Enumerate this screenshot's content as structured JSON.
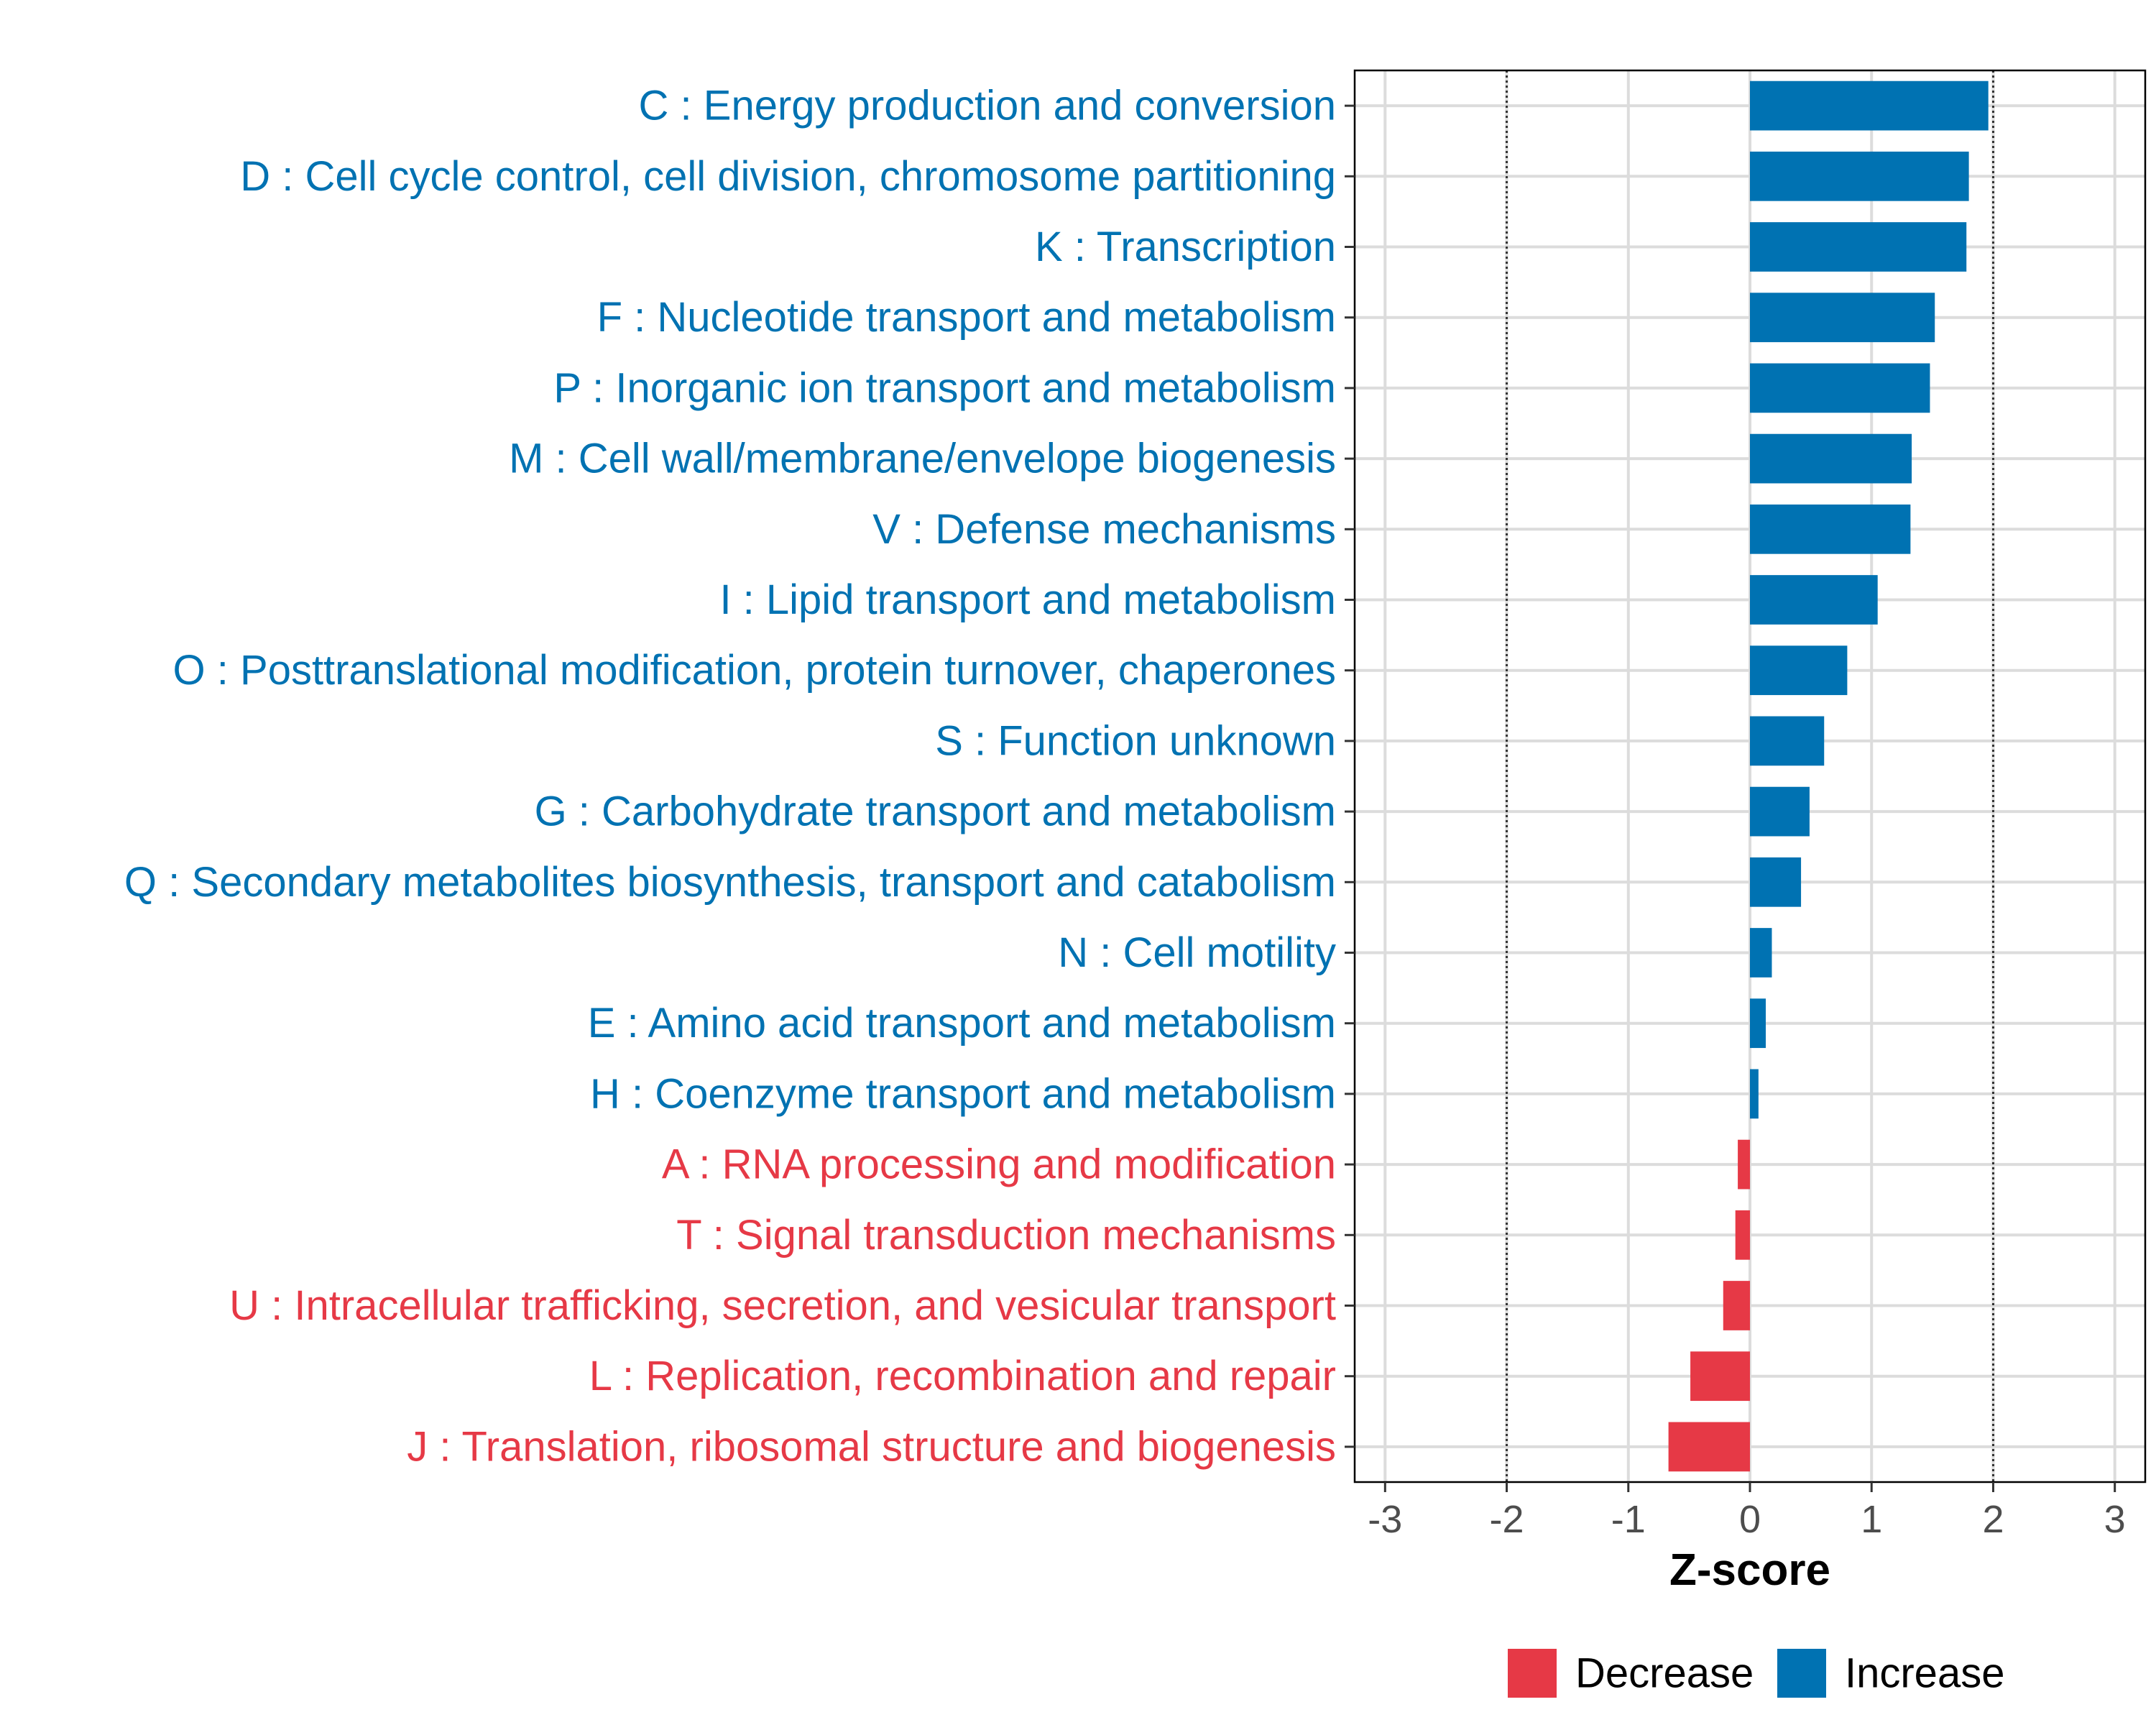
{
  "chart_data": {
    "type": "bar",
    "orientation": "horizontal",
    "title": "",
    "xlabel": "Z-score",
    "ylabel": "",
    "xlim": [
      -3.25,
      3.25
    ],
    "xticks": [
      -3,
      -2,
      -1,
      0,
      1,
      2,
      3
    ],
    "xtick_labels": [
      "-3",
      "-2",
      "-1",
      "0",
      "1",
      "2",
      "3"
    ],
    "reference_lines": [
      -2,
      2
    ],
    "grid": true,
    "legend_position": "bottom",
    "legend": [
      {
        "label": "Decrease",
        "color": "#e63946"
      },
      {
        "label": "Increase",
        "color": "#0072b2"
      }
    ],
    "categories": [
      "C : Energy production and conversion",
      "D : Cell cycle control, cell division, chromosome partitioning",
      "K : Transcription",
      "F : Nucleotide transport and metabolism",
      "P : Inorganic ion transport and metabolism",
      "M : Cell wall/membrane/envelope biogenesis",
      "V : Defense mechanisms",
      "I : Lipid transport and metabolism",
      "O : Posttranslational modification, protein turnover, chaperones",
      "S : Function unknown",
      "G : Carbohydrate transport and metabolism",
      "Q : Secondary metabolites biosynthesis, transport and catabolism",
      "N : Cell motility",
      "E : Amino acid transport and metabolism",
      "H : Coenzyme transport and metabolism",
      "A : RNA processing and modification",
      "T : Signal transduction mechanisms",
      "U : Intracellular trafficking, secretion, and vesicular transport",
      "L : Replication, recombination and repair",
      "J : Translation, ribosomal structure and biogenesis"
    ],
    "values": [
      1.96,
      1.8,
      1.78,
      1.52,
      1.48,
      1.33,
      1.32,
      1.05,
      0.8,
      0.61,
      0.49,
      0.42,
      0.18,
      0.13,
      0.07,
      -0.1,
      -0.12,
      -0.22,
      -0.49,
      -0.67
    ],
    "direction": [
      "Increase",
      "Increase",
      "Increase",
      "Increase",
      "Increase",
      "Increase",
      "Increase",
      "Increase",
      "Increase",
      "Increase",
      "Increase",
      "Increase",
      "Increase",
      "Increase",
      "Increase",
      "Decrease",
      "Decrease",
      "Decrease",
      "Decrease",
      "Decrease"
    ]
  }
}
